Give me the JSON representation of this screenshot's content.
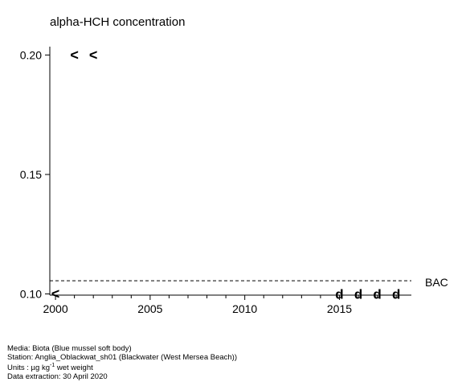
{
  "chart_data": {
    "type": "scatter",
    "title": "alpha-HCH concentration",
    "xlabel": "",
    "ylabel": "",
    "xlim": [
      1999.7,
      2018.8
    ],
    "ylim": [
      0.0995,
      0.2035
    ],
    "x_ticks": [
      2000,
      2005,
      2010,
      2015
    ],
    "x_tick_labels": [
      "2000",
      "2005",
      "2010",
      "2015"
    ],
    "y_ticks": [
      0.1,
      0.15,
      0.2
    ],
    "y_tick_labels": [
      "0.10",
      "0.15",
      "0.20"
    ],
    "points": [
      {
        "x": 2000,
        "y": 0.1,
        "symbol": "<"
      },
      {
        "x": 2001,
        "y": 0.2,
        "symbol": "<"
      },
      {
        "x": 2002,
        "y": 0.2,
        "symbol": "<"
      },
      {
        "x": 2015,
        "y": 0.1,
        "symbol": "d"
      },
      {
        "x": 2016,
        "y": 0.1,
        "symbol": "d"
      },
      {
        "x": 2017,
        "y": 0.1,
        "symbol": "d"
      },
      {
        "x": 2018,
        "y": 0.1,
        "symbol": "d"
      }
    ],
    "reference_line": {
      "label": "BAC",
      "y": 0.1055,
      "style": "dashed"
    },
    "grid": false
  },
  "footer": {
    "media": "Media: Biota (Blue mussel soft body)",
    "station": "Station: Anglia_Oblackwat_sh01 (Blackwater (West Mersea Beach))",
    "units_prefix": "Units :  µg kg",
    "units_exp": "-1",
    "units_suffix": " wet weight",
    "extraction": "Data extraction: 30 April 2020"
  }
}
